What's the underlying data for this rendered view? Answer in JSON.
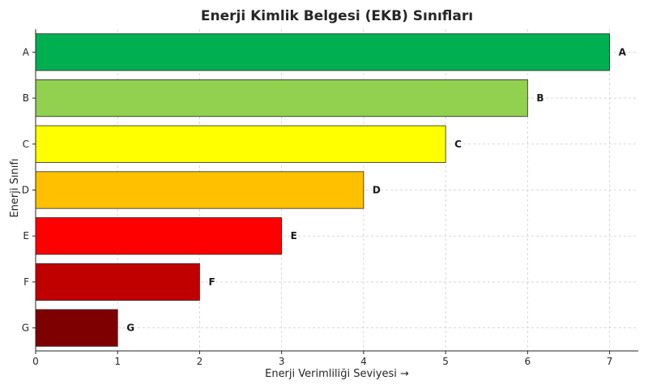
{
  "chart_data": {
    "type": "bar",
    "orientation": "horizontal",
    "title": "Enerji Kimlik Belgesi (EKB) Sınıfları",
    "xlabel": "Enerji Verimliliği Seviyesi →",
    "ylabel": "Enerji Sınıfı",
    "categories": [
      "A",
      "B",
      "C",
      "D",
      "E",
      "F",
      "G"
    ],
    "values": [
      7,
      6,
      5,
      4,
      3,
      2,
      1
    ],
    "data_labels": [
      "A",
      "B",
      "C",
      "D",
      "E",
      "F",
      "G"
    ],
    "colors": [
      "#00b050",
      "#92d050",
      "#ffff00",
      "#ffc000",
      "#ff0000",
      "#c00000",
      "#7f0000"
    ],
    "xlim": [
      0,
      7.35
    ],
    "x_ticks": [
      0,
      1,
      2,
      3,
      4,
      5,
      6,
      7
    ],
    "grid": true,
    "legend": "none"
  }
}
